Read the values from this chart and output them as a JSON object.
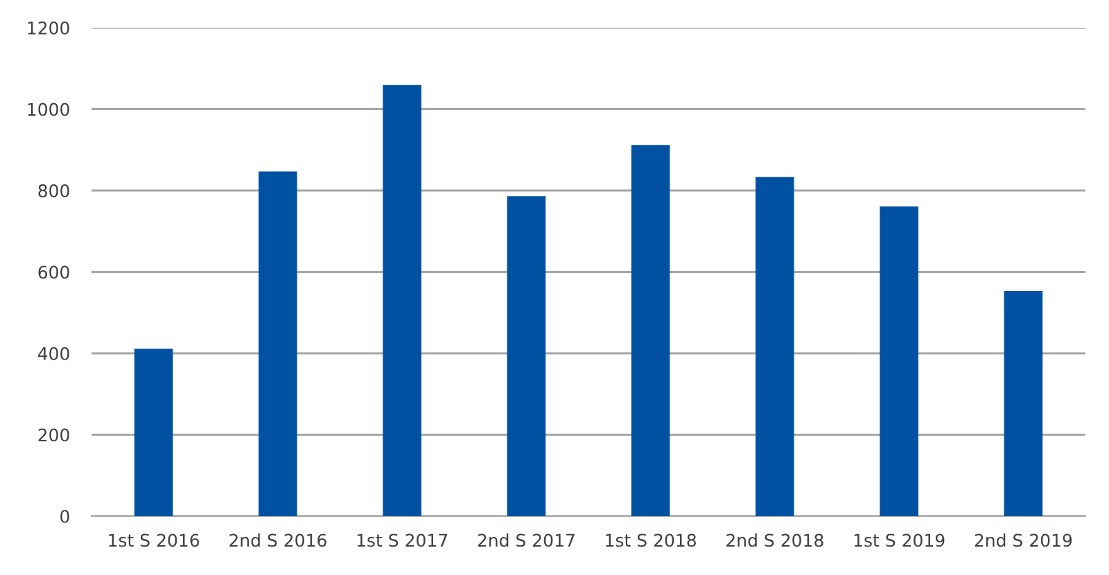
{
  "chart_data": {
    "type": "bar",
    "categories": [
      "1st S 2016",
      "2nd S 2016",
      "1st S 2017",
      "2nd S 2017",
      "1st S 2018",
      "2nd S 2018",
      "1st S 2019",
      "2nd S 2019"
    ],
    "values": [
      411,
      847,
      1059,
      786,
      912,
      833,
      761,
      553
    ],
    "color": "#0051a1",
    "ylim": [
      0,
      1200
    ],
    "yticks": [
      0,
      200,
      400,
      600,
      800,
      1000,
      1200
    ],
    "grid": "y",
    "legend": false
  }
}
